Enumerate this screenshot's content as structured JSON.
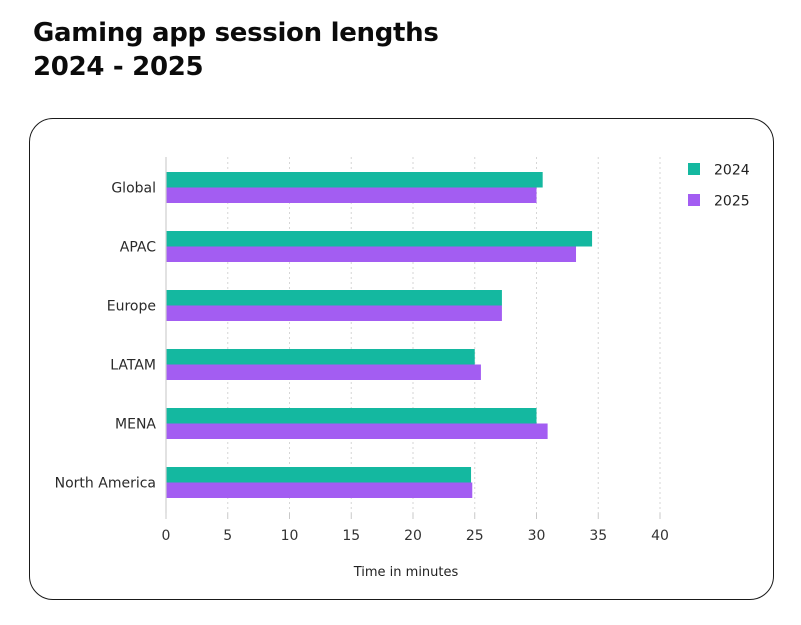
{
  "header": {
    "title_line1": "Gaming app session lengths",
    "title_line2": "2024 - 2025"
  },
  "chart_data": {
    "type": "bar",
    "orientation": "horizontal",
    "title": "Gaming app session lengths 2024 - 2025",
    "xlabel": "Time in minutes",
    "ylabel": "",
    "xlim": [
      0,
      40
    ],
    "xticks": [
      0,
      5,
      10,
      15,
      20,
      25,
      30,
      35,
      40
    ],
    "grid": true,
    "legend_position": "top-right",
    "categories": [
      "Global",
      "APAC",
      "Europe",
      "LATAM",
      "MENA",
      "North America"
    ],
    "series": [
      {
        "name": "2024",
        "color": "#14b8a0",
        "values": [
          30.5,
          34.5,
          27.2,
          25.0,
          30.0,
          24.7
        ]
      },
      {
        "name": "2025",
        "color": "#a35df2",
        "values": [
          30.0,
          33.2,
          27.2,
          25.5,
          30.9,
          24.8
        ]
      }
    ]
  }
}
